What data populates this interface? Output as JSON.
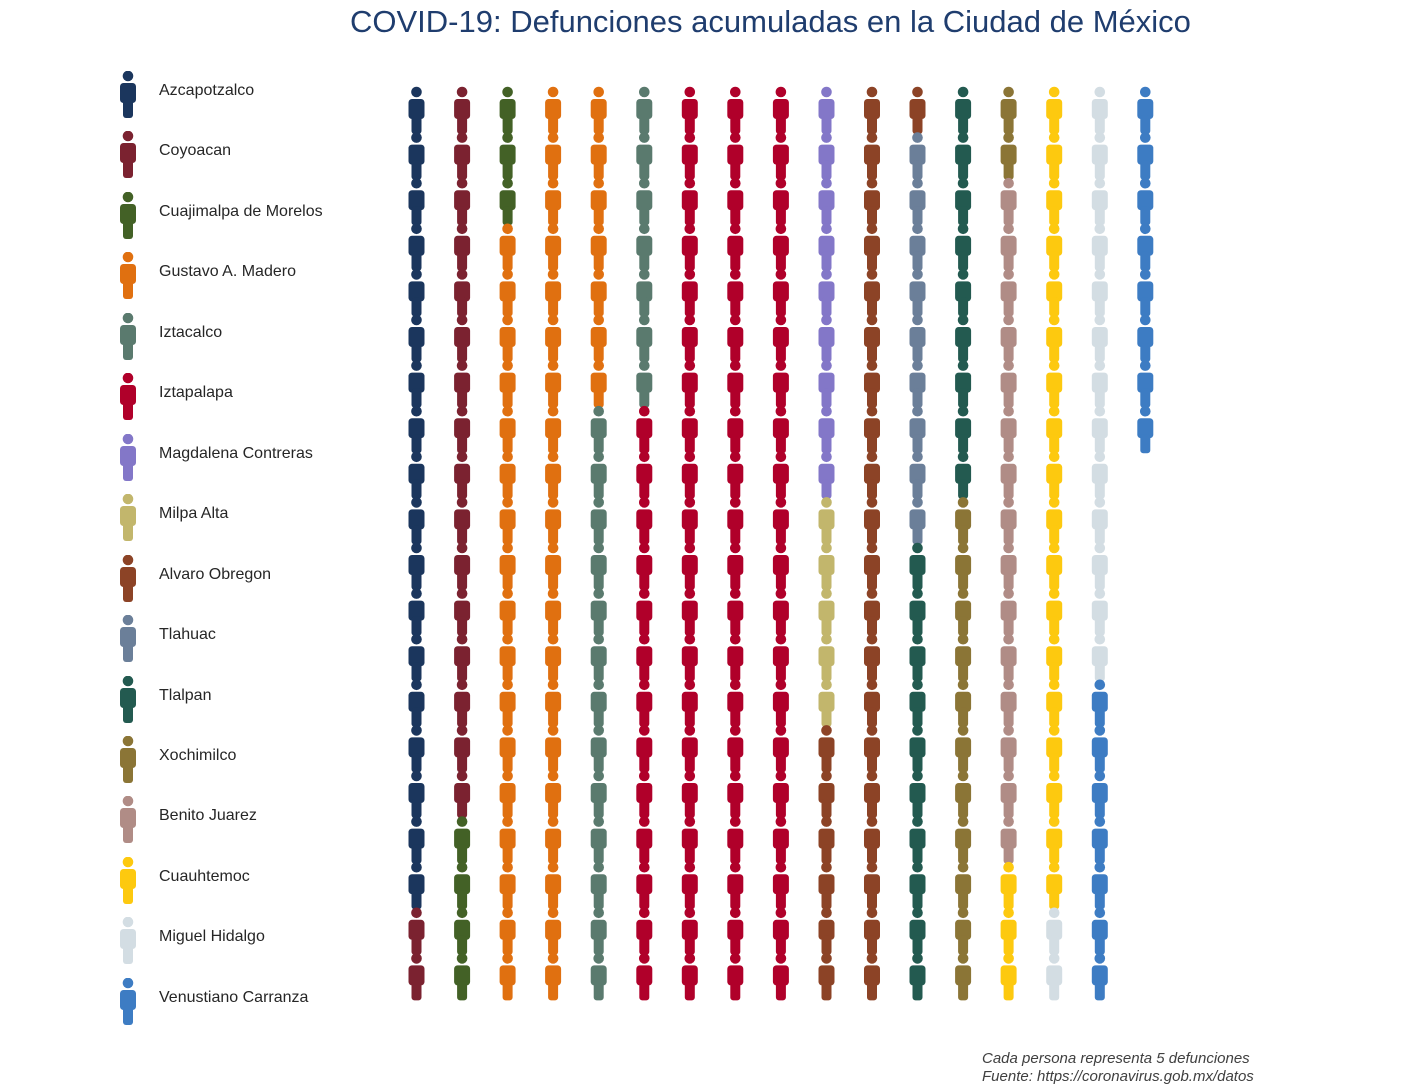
{
  "title": "COVID-19: Defunciones acumuladas en la Ciudad de México",
  "footnote": {
    "line1": "Cada persona representa 5 defunciones",
    "line2": "Fuente: https://coronavirus.gob.mx/datos"
  },
  "chart_data": {
    "type": "waffle",
    "icon": "person-icon",
    "unit_per_icon": 5,
    "grid": false,
    "legend_position": "left",
    "categories": [
      {
        "name": "Azcapotzalco",
        "color": "#1b365d",
        "icons": 18
      },
      {
        "name": "Coyoacan",
        "color": "#7b2230",
        "icons": 18
      },
      {
        "name": "Cuajimalpa de Morelos",
        "color": "#436126",
        "icons": 7
      },
      {
        "name": "Gustavo A. Madero",
        "color": "#e07010",
        "icons": 44
      },
      {
        "name": "Iztacalco",
        "color": "#5a7a6e",
        "icons": 20
      },
      {
        "name": "Iztapalapa",
        "color": "#b0002a",
        "icons": 73
      },
      {
        "name": "Magdalena Contreras",
        "color": "#8377c8",
        "icons": 9
      },
      {
        "name": "Milpa Alta",
        "color": "#c2b66c",
        "icons": 5
      },
      {
        "name": "Alvaro Obregon",
        "color": "#8c4326",
        "icons": 27
      },
      {
        "name": "Tlahuac",
        "color": "#6b7f99",
        "icons": 9
      },
      {
        "name": "Tlalpan",
        "color": "#235a50",
        "icons": 19
      },
      {
        "name": "Xochimilco",
        "color": "#8b7536",
        "icons": 13
      },
      {
        "name": "Benito Juarez",
        "color": "#b08c86",
        "icons": 15
      },
      {
        "name": "Cuauhtemoc",
        "color": "#fdc90f",
        "icons": 21
      },
      {
        "name": "Miguel Hidalgo",
        "color": "#d3dde3",
        "icons": 15
      },
      {
        "name": "Venustiano Carranza",
        "color": "#3d7cc3",
        "icons": 15
      }
    ]
  }
}
